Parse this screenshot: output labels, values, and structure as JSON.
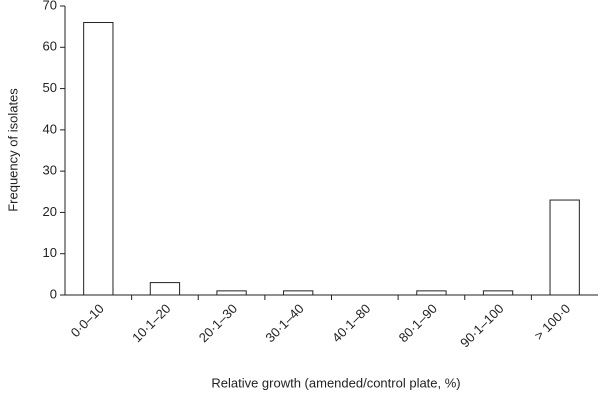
{
  "chart_data": {
    "type": "bar",
    "y_label": "Frequency of isolates",
    "x_label": "Relative growth (amended/control plate, %)",
    "categories": [
      "0·0–10",
      "10·1–20",
      "20·1–30",
      "30·1–40",
      "40·1–80",
      "80·1–90",
      "90·1–100",
      "> 100·0"
    ],
    "values": [
      66,
      3,
      1,
      1,
      0,
      1,
      1,
      23
    ],
    "color": "#ffffff",
    "ylim": [
      0,
      70
    ],
    "yticks": [
      0,
      10,
      20,
      30,
      40,
      50,
      60,
      70
    ],
    "grid": false
  }
}
